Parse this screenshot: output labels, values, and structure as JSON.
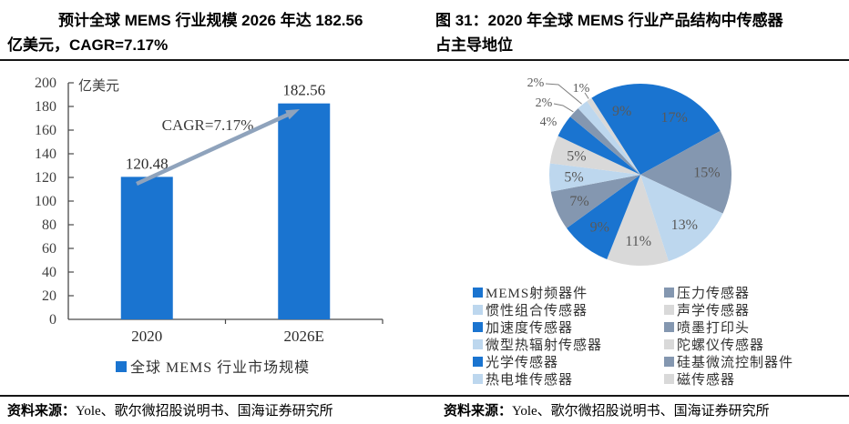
{
  "figures": {
    "left": {
      "title_line1": "预计全球 MEMS 行业规模 2026 年达 182.56",
      "title_line2": "亿美元，CAGR=7.17%",
      "source_label": "资料来源：",
      "source_text": "Yole、歌尔微招股说明书、国海证券研究所"
    },
    "right": {
      "title_line1": "图 31：2020 年全球 MEMS 行业产品结构中传感器",
      "title_line2": "占主导地位",
      "source_label": "资料来源：",
      "source_text": "Yole、歌尔微招股说明书、国海证券研究所"
    }
  },
  "chart_data": [
    {
      "type": "bar",
      "title": "预计全球 MEMS 行业规模 2026 年达 182.56 亿美元，CAGR=7.17%",
      "unit_label": "亿美元",
      "categories": [
        "2020",
        "2026E"
      ],
      "values": [
        120.48,
        182.56
      ],
      "value_labels": [
        "120.48",
        "182.56"
      ],
      "ylim": [
        0,
        200
      ],
      "ytick_step": 20,
      "grid": false,
      "annotation": "CAGR=7.17%",
      "legend": [
        "全球 MEMS 行业市场规模"
      ],
      "legend_position": "bottom",
      "colors": {
        "bar": "#1A74D0",
        "arrow": "#8FA3BC",
        "axis": "#4a4a4a",
        "label_text": "#595959"
      }
    },
    {
      "type": "pie",
      "title": "图 31：2020 年全球 MEMS 行业产品结构中传感器占主导地位",
      "start_angle_deg_from_top": 0,
      "direction": "clockwise",
      "label_color": "#595959",
      "legend_position": "bottom-two-columns",
      "slices": [
        {
          "label": "MEMS射频器件",
          "percent": 17,
          "color": "#1A74D0"
        },
        {
          "label": "压力传感器",
          "percent": 15,
          "color": "#8497B0"
        },
        {
          "label": "惯性组合传感器",
          "percent": 13,
          "color": "#BDD7EE"
        },
        {
          "label": "声学传感器",
          "percent": 11,
          "color": "#D9D9D9"
        },
        {
          "label": "加速度传感器",
          "percent": 9,
          "color": "#1A74D0"
        },
        {
          "label": "喷墨打印头",
          "percent": 7,
          "color": "#8497B0"
        },
        {
          "label": "微型热辐射传感器",
          "percent": 5,
          "color": "#BDD7EE"
        },
        {
          "label": "陀螺仪传感器",
          "percent": 5,
          "color": "#D9D9D9"
        },
        {
          "label": "光学传感器",
          "percent": 4,
          "color": "#1A74D0"
        },
        {
          "label": "硅基微流控制器件",
          "percent": 2,
          "color": "#8497B0"
        },
        {
          "label": "热电堆传感器",
          "percent": 2,
          "color": "#BDD7EE"
        },
        {
          "label": "磁传感器",
          "percent": 1,
          "color": "#D9D9D9"
        },
        {
          "label": "",
          "percent": 9,
          "color": "#1A74D0"
        }
      ]
    }
  ]
}
